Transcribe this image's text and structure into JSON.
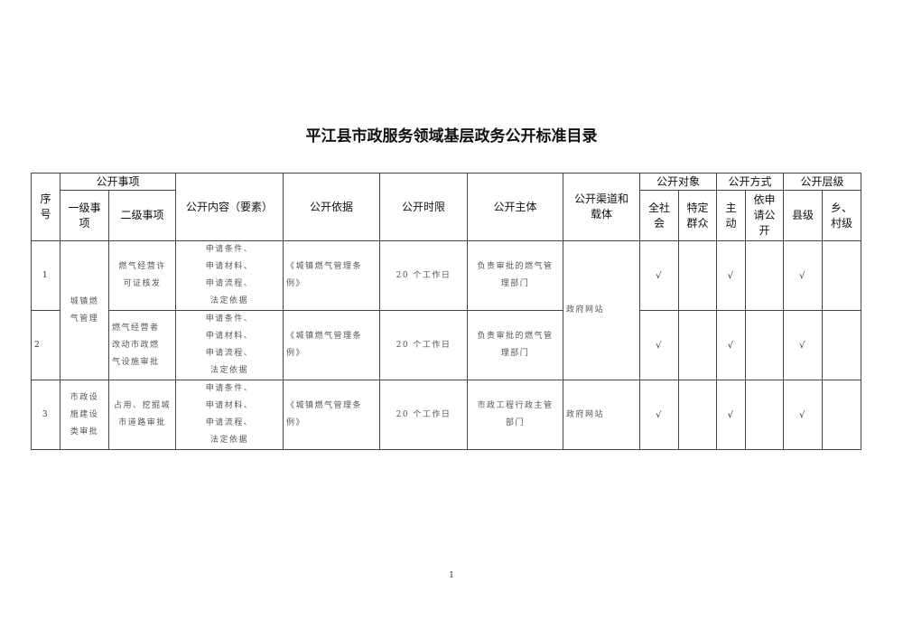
{
  "title": "平江县市政服务领域基层政务公开标准目录",
  "headers": {
    "seq": "序\n号",
    "matters": "公开事项",
    "level1": "一级事\n项",
    "level2": "二级事项",
    "content": "公开内容（要素）",
    "basis": "公开依据",
    "deadline": "公开时限",
    "subject": "公开主体",
    "channel": "公开渠道和\n载体",
    "target": "公开对象",
    "target_all": "全社\n会",
    "target_specific": "特定\n群众",
    "method": "公开方式",
    "method_active": "主\n动",
    "method_request": "依申\n请公\n开",
    "level": "公开层级",
    "level_county": "县级",
    "level_town": "乡、\n村级"
  },
  "groups": [
    {
      "level1": "城镇燃\n气管理",
      "channel": "政府网站"
    },
    {
      "level1": "市政设\n施建设\n类审批",
      "channel": "政府网站"
    }
  ],
  "rows": [
    {
      "seq": "1",
      "level2": "燃气经营许\n可证核发",
      "content": "申请条件、\n申请材料、\n申请流程、\n法定依据",
      "basis": "《城镇燃气管理条\n例》",
      "deadline": "20 个工作日",
      "subject": "负责审批的燃气管\n理部门",
      "all": "√",
      "specific": "",
      "active": "√",
      "request": "",
      "county": "√",
      "town": ""
    },
    {
      "seq": "2",
      "level2": "燃气经营者\n改动市政燃\n气设施审批",
      "content": "申请条件、\n申请材料、\n申请流程、\n法定依据",
      "basis": "《城镇燃气管理条\n例》",
      "deadline": "20 个工作日",
      "subject": "负责审批的燃气管\n理部门",
      "all": "√",
      "specific": "",
      "active": "√",
      "request": "",
      "county": "√",
      "town": ""
    },
    {
      "seq": "3",
      "level2": "占用、挖掘城\n市道路审批",
      "content": "申请条件、\n申请材料、\n申请流程、\n法定依据",
      "basis": "《城镇燃气管理条\n例》",
      "deadline": "20 个工作日",
      "subject": "市政工程行政主管\n部门",
      "all": "√",
      "specific": "",
      "active": "√",
      "request": "",
      "county": "√",
      "town": ""
    }
  ],
  "page_number": "1"
}
